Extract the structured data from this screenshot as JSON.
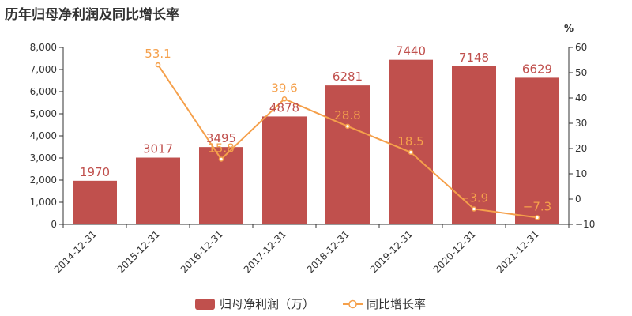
{
  "chart_data": {
    "type": "bar",
    "title": "历年归母净利润及同比增长率",
    "categories": [
      "2014-12-31",
      "2015-12-31",
      "2016-12-31",
      "2017-12-31",
      "2018-12-31",
      "2019-12-31",
      "2020-12-31",
      "2021-12-31"
    ],
    "series": [
      {
        "name": "归母净利润（万）",
        "type": "bar",
        "axis": "left",
        "color": "#c0504d",
        "values": [
          1970,
          3017,
          3495,
          4878,
          6281,
          7440,
          7148,
          6629
        ],
        "labels": [
          "1970",
          "3017",
          "3495",
          "4878",
          "6281",
          "7440",
          "7148",
          "6629"
        ]
      },
      {
        "name": "同比增长率",
        "type": "line",
        "axis": "right",
        "color": "#f5a04b",
        "values": [
          null,
          53.1,
          15.8,
          39.6,
          28.8,
          18.5,
          -3.9,
          -7.3
        ],
        "labels": [
          "",
          "53.1",
          "15.8",
          "39.6",
          "28.8",
          "18.5",
          "−3.9",
          "−7.3"
        ]
      }
    ],
    "y_left": {
      "min": 0,
      "max": 8000,
      "ticks": [
        "0",
        "1,000",
        "2,000",
        "3,000",
        "4,000",
        "5,000",
        "6,000",
        "7,000",
        "8,000"
      ]
    },
    "y_right": {
      "min": -10,
      "max": 60,
      "unit": "%",
      "ticks": [
        "−10",
        "0",
        "10",
        "20",
        "30",
        "40",
        "50",
        "60"
      ]
    },
    "legend_position": "bottom-center",
    "grid": false
  }
}
